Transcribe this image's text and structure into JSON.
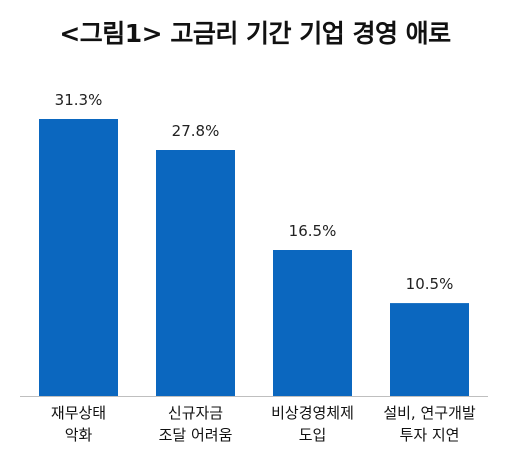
{
  "title": "<그림1> 고금리 기간 기업 경영 애로",
  "chart_data": {
    "type": "bar",
    "title": "<그림1> 고금리 기간 기업 경영 애로",
    "categories": [
      [
        "재무상태",
        "악화"
      ],
      [
        "신규자금",
        "조달 어려움"
      ],
      [
        "비상경영체제",
        "도입"
      ],
      [
        "설비, 연구개발",
        "투자 지연"
      ]
    ],
    "values": [
      31.3,
      27.8,
      16.5,
      10.5
    ],
    "value_labels": [
      "31.3%",
      "27.8%",
      "16.5%",
      "10.5%"
    ],
    "ylim": [
      0,
      33
    ],
    "grid": false,
    "legend": "none",
    "xlabel": "",
    "ylabel": "",
    "colors": {
      "bar": "#0b67bf",
      "axis": "#bfbfbf"
    }
  }
}
